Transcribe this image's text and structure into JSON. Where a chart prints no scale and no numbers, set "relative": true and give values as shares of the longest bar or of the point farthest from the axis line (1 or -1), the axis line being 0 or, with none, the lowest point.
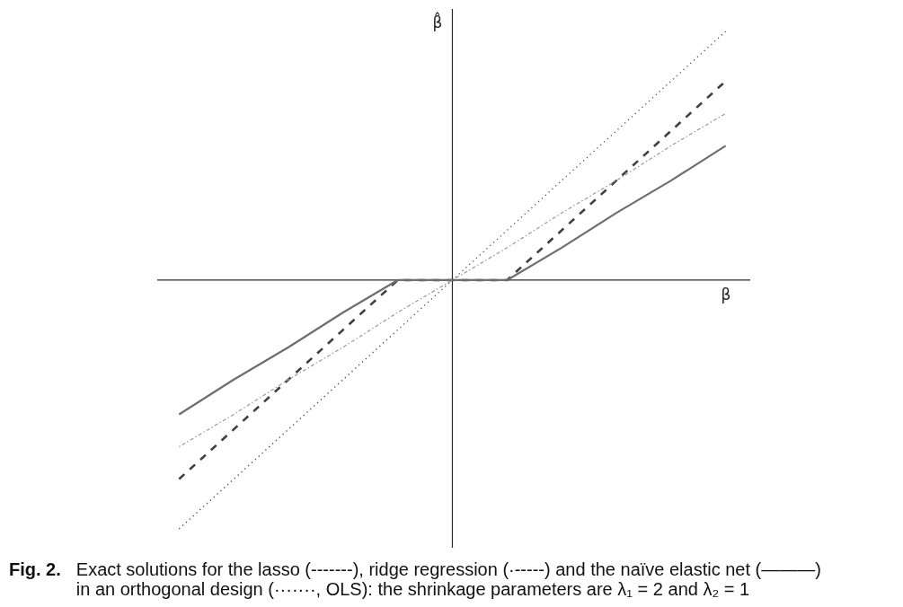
{
  "chart_data": {
    "type": "line",
    "relative": true,
    "xlabel": "β",
    "ylabel": "β̂",
    "annotations": [
      "Fig. 2.",
      "Exact solutions for the lasso (-------), ridge regression (·-----) and the naïve elastic net (———) in an orthogonal design (·······, OLS): the shrinkage parameters are λ₁ = 2 and λ₂ = 1"
    ],
    "categories": [
      null,
      null,
      null,
      null,
      null,
      null,
      null,
      null,
      null,
      null,
      null
    ],
    "marker": "none",
    "series": [
      {
        "color": "#4d4d4d",
        "line_style": "dotted",
        "values": [
          -1,
          -0.8,
          -0.6,
          -0.4,
          -0.2,
          0,
          0.2,
          0.4,
          0.6,
          0.8,
          1
        ]
      },
      {
        "color": "#404040",
        "line_style": "dashed",
        "values": [
          -0.8,
          -0.6,
          -0.4,
          -0.2,
          0,
          0,
          0,
          0.2,
          0.4,
          0.6,
          0.8
        ]
      },
      {
        "color": "#9a9a9a",
        "line_style": "dashdot",
        "values": [
          -0.67,
          -0.54,
          -0.4,
          -0.27,
          -0.13,
          0,
          0.13,
          0.27,
          0.4,
          0.54,
          0.67
        ]
      },
      {
        "color": "#6e6e6e",
        "line_style": "solid",
        "values": [
          -0.54,
          -0.4,
          -0.27,
          -0.13,
          0,
          0,
          0,
          0.13,
          0.27,
          0.4,
          0.54
        ]
      }
    ]
  }
}
